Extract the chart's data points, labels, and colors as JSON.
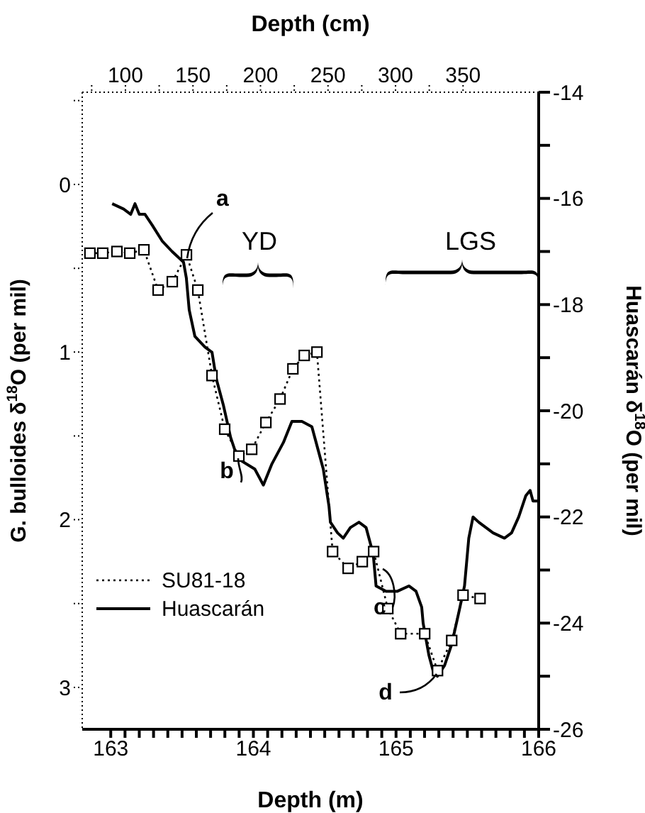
{
  "chart_data": {
    "type": "line",
    "xlabel": "Depth (m)",
    "x2label": "Depth (cm)",
    "ylabel": "G. bulloides δ$^{18}$O (per mil)",
    "y2label": "Huascarán δ$^{18}$O (per mil)",
    "xlim": [
      162.8,
      166
    ],
    "xticks": [
      163,
      {
        "value": 163.1,
        "label": null
      },
      {
        "value": 163.2,
        "label": null
      },
      {
        "value": 163.3,
        "label": null
      },
      {
        "value": 163.4,
        "label": null
      },
      {
        "value": 163.5,
        "label": null
      },
      {
        "value": 163.6,
        "label": null
      },
      {
        "value": 163.7,
        "label": null
      },
      {
        "value": 163.8,
        "label": null
      },
      {
        "value": 163.9,
        "label": null
      },
      164,
      {
        "value": 164.1,
        "label": null
      },
      {
        "value": 164.2,
        "label": null
      },
      {
        "value": 164.3,
        "label": null
      },
      {
        "value": 164.4,
        "label": null
      },
      {
        "value": 164.5,
        "label": null
      },
      {
        "value": 164.6,
        "label": null
      },
      {
        "value": 164.7,
        "label": null
      },
      {
        "value": 164.8,
        "label": null
      },
      {
        "value": 164.9,
        "label": null
      },
      165,
      {
        "value": 165.1,
        "label": null
      },
      {
        "value": 165.2,
        "label": null
      },
      {
        "value": 165.3,
        "label": null
      },
      {
        "value": 165.4,
        "label": null
      },
      {
        "value": 165.5,
        "label": null
      },
      {
        "value": 165.6,
        "label": null
      },
      {
        "value": 165.7,
        "label": null
      },
      {
        "value": 165.8,
        "label": null
      },
      {
        "value": 165.9,
        "label": null
      },
      166
    ],
    "x2lim": [
      68,
      406
    ],
    "x2ticks": [
      {
        "value": 75,
        "label": null
      },
      100,
      {
        "value": 125,
        "label": null
      },
      150,
      {
        "value": 175,
        "label": null
      },
      200,
      {
        "value": 225,
        "label": null
      },
      250,
      {
        "value": 275,
        "label": null
      },
      300,
      {
        "value": 325,
        "label": null
      },
      350
    ],
    "ylim": [
      3.25,
      -0.55
    ],
    "yticks": [
      {
        "value": -0.5,
        "label": null
      },
      0,
      {
        "value": 0.5,
        "label": null
      },
      1,
      {
        "value": 1.5,
        "label": null
      },
      2,
      {
        "value": 2.5,
        "label": null
      },
      3
    ],
    "y2lim": [
      -26,
      -14
    ],
    "y2ticks": [
      -26,
      {
        "value": -25,
        "label": null
      },
      -24,
      {
        "value": -23,
        "label": null
      },
      -22,
      {
        "value": -21,
        "label": null
      },
      -20,
      {
        "value": -19,
        "label": null
      },
      -18,
      {
        "value": -17,
        "label": null
      },
      -16,
      {
        "value": -15,
        "label": null
      },
      -14
    ],
    "legend": "bottom left",
    "annotations": [
      "a",
      "b",
      "c",
      "d",
      "YD",
      "LGS"
    ],
    "series": [
      {
        "name": "SU81-18",
        "color": "#000000",
        "axis": "x2",
        "line_style": "dotted",
        "marker": "square",
        "x": [
          73.7,
          83.2,
          93.7,
          103.2,
          113.7,
          124.2,
          134.7,
          145.2,
          153.6,
          164.1,
          173.5,
          184,
          193.5,
          204,
          214.5,
          224,
          232.4,
          241.8,
          253.4,
          264.9,
          275.4,
          283.8,
          294.3,
          303.8,
          321.6,
          331.1,
          341.6,
          350,
          362.6
        ],
        "values": [
          0.41,
          0.41,
          0.4,
          0.41,
          0.39,
          0.63,
          0.58,
          0.42,
          0.63,
          1.14,
          1.46,
          1.62,
          1.58,
          1.42,
          1.28,
          1.1,
          1.02,
          1.0,
          2.19,
          2.29,
          2.25,
          2.19,
          2.53,
          2.68,
          2.68,
          2.9,
          2.72,
          2.45,
          2.47
        ]
      },
      {
        "name": "Huascarán",
        "color": "#000000",
        "axis": "y2",
        "line_style": "solid",
        "marker": "none",
        "x": [
          163.01,
          163.09,
          163.14,
          163.17,
          163.2,
          163.24,
          163.29,
          163.36,
          163.43,
          163.51,
          163.53,
          163.55,
          163.59,
          163.66,
          163.71,
          163.74,
          163.79,
          163.84,
          163.89,
          164.01,
          164.07,
          164.13,
          164.21,
          164.27,
          164.34,
          164.41,
          164.45,
          164.49,
          164.53,
          164.54,
          164.59,
          164.63,
          164.68,
          164.74,
          164.79,
          164.84,
          164.86,
          164.93,
          165.01,
          165.09,
          165.14,
          165.18,
          165.19,
          165.23,
          165.26,
          165.29,
          165.34,
          165.39,
          165.44,
          165.48,
          165.51,
          165.54,
          165.58,
          165.63,
          165.68,
          165.76,
          165.81,
          165.86,
          165.91,
          165.94,
          165.96,
          165.99
        ],
        "values": [
          -16.1,
          -16.2,
          -16.3,
          -16.1,
          -16.3,
          -16.3,
          -16.5,
          -16.8,
          -17.0,
          -17.2,
          -17.5,
          -18.1,
          -18.6,
          -18.8,
          -18.9,
          -19.4,
          -19.9,
          -20.5,
          -20.9,
          -21.1,
          -21.4,
          -21.0,
          -20.6,
          -20.2,
          -20.2,
          -20.3,
          -20.7,
          -21.1,
          -21.8,
          -22.1,
          -22.3,
          -22.4,
          -22.2,
          -22.1,
          -22.2,
          -22.7,
          -23.3,
          -23.4,
          -23.4,
          -23.3,
          -23.4,
          -23.7,
          -24.0,
          -24.6,
          -24.9,
          -25.0,
          -24.8,
          -24.4,
          -23.8,
          -23.3,
          -22.4,
          -22.0,
          -22.1,
          -22.2,
          -22.3,
          -22.4,
          -22.3,
          -22.0,
          -21.6,
          -21.5,
          -21.7,
          -21.7
        ]
      }
    ]
  }
}
